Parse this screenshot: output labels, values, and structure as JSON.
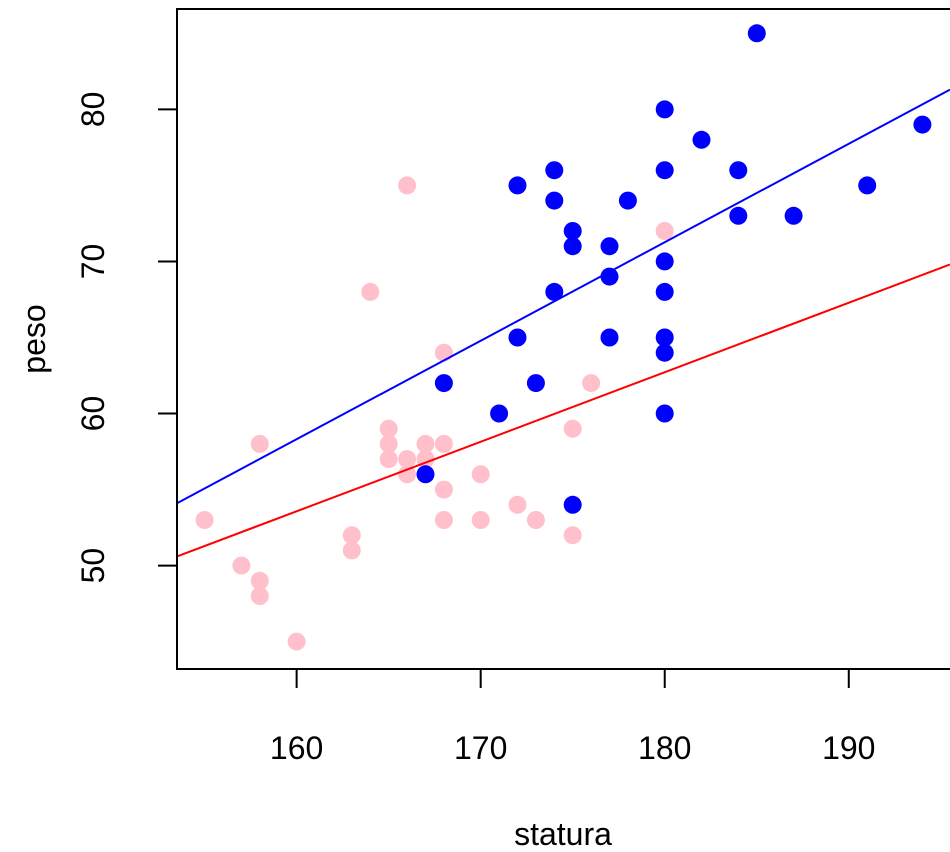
{
  "chart_data": {
    "type": "scatter",
    "title": "",
    "xlabel": "statura",
    "ylabel": "peso",
    "xlim": [
      153.5,
      195.5
    ],
    "ylim": [
      43.2,
      86.6
    ],
    "xticks": [
      160,
      170,
      180,
      190
    ],
    "yticks": [
      50,
      60,
      70,
      80
    ],
    "grid": false,
    "series": [
      {
        "color": "#FFC0CB",
        "points": [
          [
            155,
            53
          ],
          [
            157,
            50
          ],
          [
            158,
            58
          ],
          [
            158,
            49
          ],
          [
            158,
            48
          ],
          [
            160,
            45
          ],
          [
            163,
            52
          ],
          [
            163,
            51
          ],
          [
            164,
            68
          ],
          [
            165,
            59
          ],
          [
            165,
            58
          ],
          [
            165,
            57
          ],
          [
            166,
            75
          ],
          [
            166,
            57
          ],
          [
            166,
            56
          ],
          [
            167,
            58
          ],
          [
            167,
            57
          ],
          [
            168,
            64
          ],
          [
            168,
            58
          ],
          [
            168,
            55
          ],
          [
            168,
            53
          ],
          [
            170,
            56
          ],
          [
            170,
            53
          ],
          [
            172,
            54
          ],
          [
            173,
            53
          ],
          [
            175,
            59
          ],
          [
            175,
            52
          ],
          [
            176,
            62
          ],
          [
            180,
            72
          ]
        ]
      },
      {
        "color": "#0000FF",
        "points": [
          [
            167,
            56
          ],
          [
            168,
            62
          ],
          [
            171,
            60
          ],
          [
            172,
            75
          ],
          [
            172,
            65
          ],
          [
            173,
            62
          ],
          [
            174,
            76
          ],
          [
            174,
            74
          ],
          [
            174,
            68
          ],
          [
            175,
            72
          ],
          [
            175,
            71
          ],
          [
            175,
            54
          ],
          [
            177,
            71
          ],
          [
            177,
            69
          ],
          [
            177,
            65
          ],
          [
            178,
            74
          ],
          [
            180,
            80
          ],
          [
            180,
            76
          ],
          [
            180,
            70
          ],
          [
            180,
            68
          ],
          [
            180,
            65
          ],
          [
            180,
            64
          ],
          [
            180,
            60
          ],
          [
            182,
            78
          ],
          [
            184,
            76
          ],
          [
            184,
            73
          ],
          [
            185,
            85
          ],
          [
            187,
            73
          ],
          [
            191,
            75
          ],
          [
            194,
            79
          ]
        ]
      }
    ],
    "lines": [
      {
        "color": "#FF0000",
        "x": [
          153.5,
          195.5
        ],
        "y": [
          50.6,
          69.8
        ]
      },
      {
        "color": "#0000FF",
        "x": [
          153.5,
          195.5
        ],
        "y": [
          54.1,
          81.3
        ]
      }
    ]
  }
}
